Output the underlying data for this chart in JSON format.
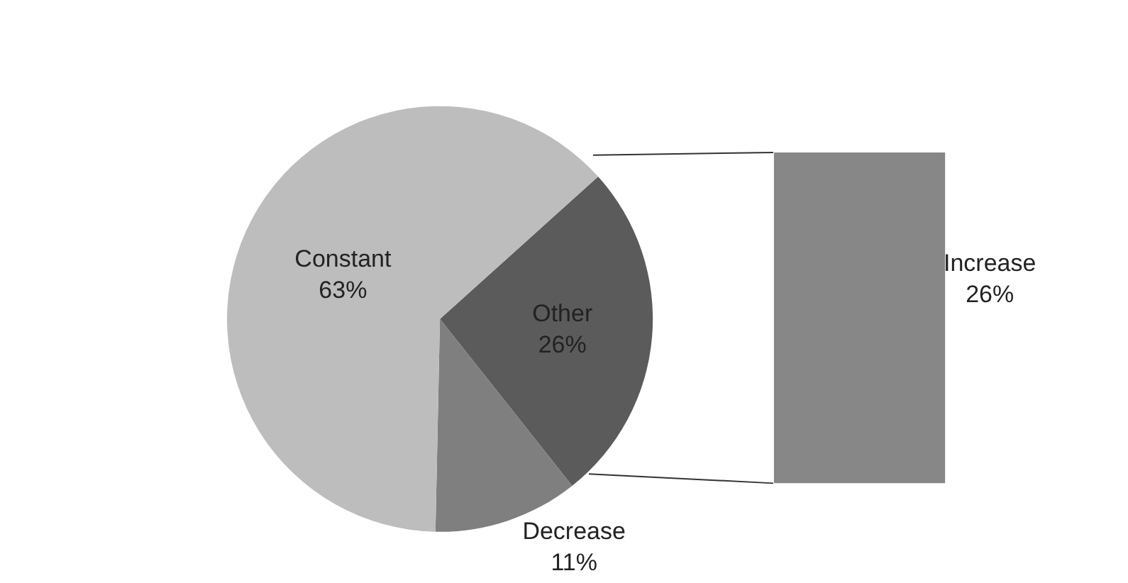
{
  "chart_data": [
    {
      "type": "pie",
      "categories": [
        "Other",
        "Decrease",
        "Constant"
      ],
      "values": [
        26,
        11,
        63
      ],
      "colors": [
        "#5b5b5b",
        "#7f7f7f",
        "#bdbdbd"
      ],
      "value_labels": [
        "26%",
        "11%",
        "63%"
      ]
    },
    {
      "type": "other",
      "categories": [
        "Increase"
      ],
      "values": [
        26
      ],
      "colors": [
        "#878787"
      ],
      "value_labels": [
        "26%"
      ]
    }
  ]
}
